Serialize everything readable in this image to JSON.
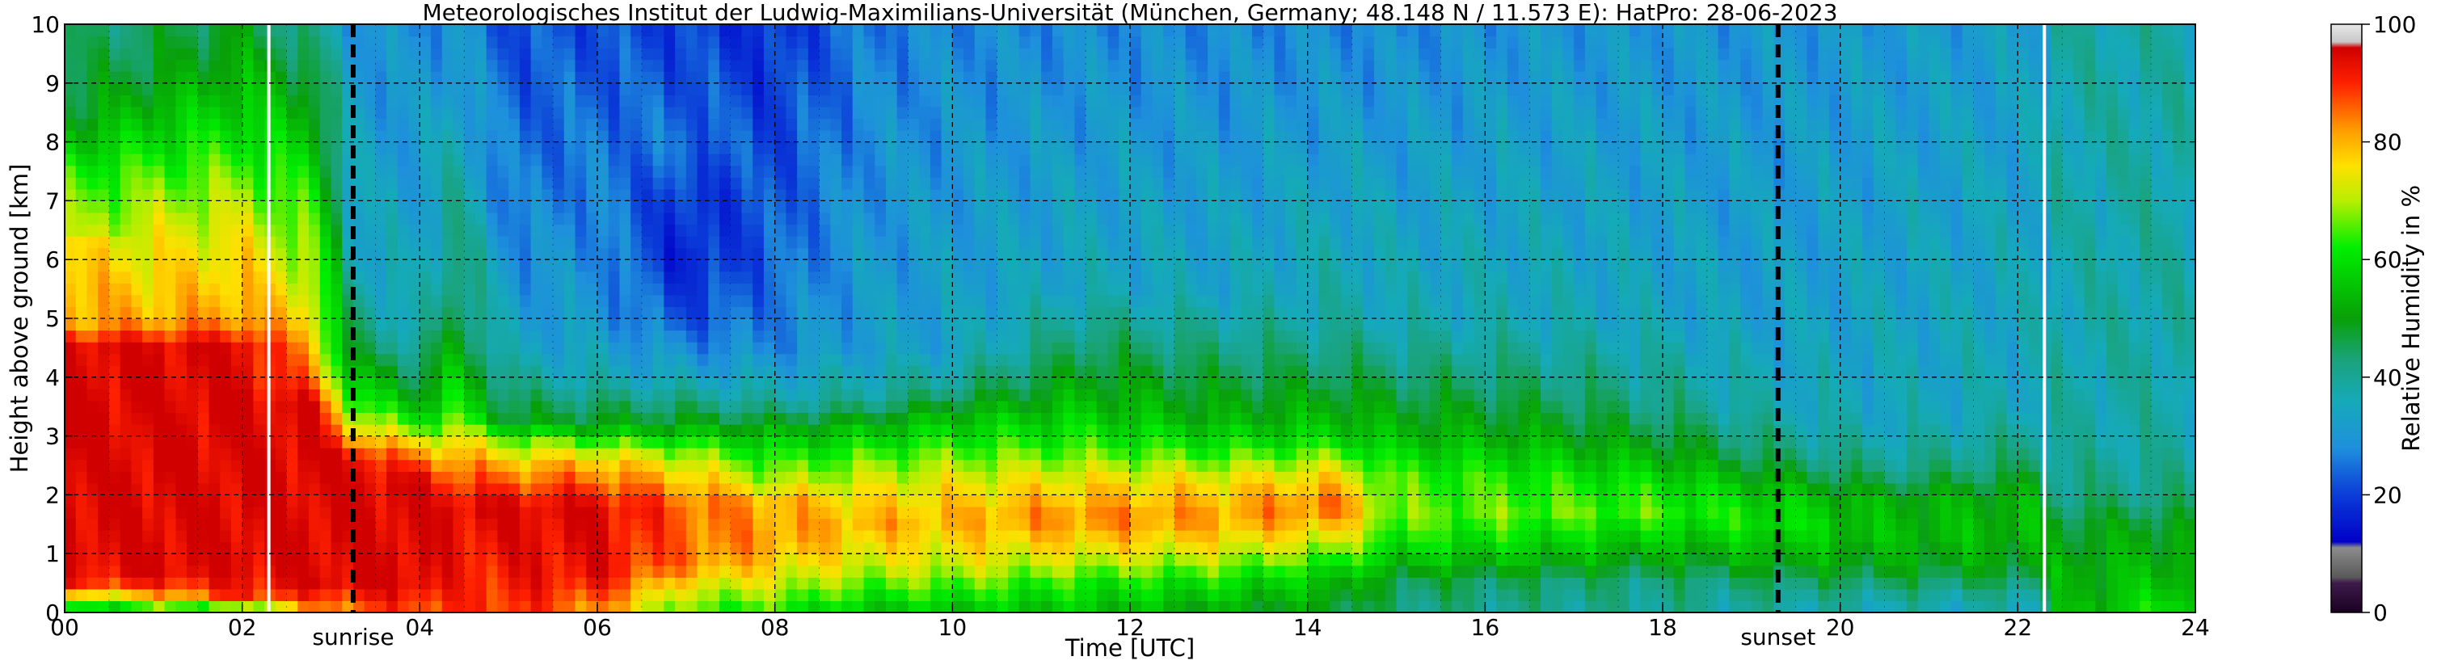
{
  "chart_data": {
    "type": "heatmap",
    "title": "Meteorologisches Institut der Ludwig-Maximilians-Universität (München, Germany; 48.148 N / 11.573 E):    HatPro: 28-06-2023",
    "xlabel": "Time [UTC]",
    "ylabel": "Height above ground [km]",
    "xlim": [
      0,
      24
    ],
    "ylim": [
      0,
      10
    ],
    "x_ticks": [
      0,
      2,
      4,
      6,
      8,
      10,
      12,
      14,
      16,
      18,
      20,
      22,
      24
    ],
    "x_tick_labels": [
      "00",
      "02",
      "04",
      "06",
      "08",
      "10",
      "12",
      "14",
      "16",
      "18",
      "20",
      "22",
      "24"
    ],
    "y_ticks": [
      0,
      1,
      2,
      3,
      4,
      5,
      6,
      7,
      8,
      9,
      10
    ],
    "y_tick_labels": [
      "0",
      "1",
      "2",
      "3",
      "4",
      "5",
      "6",
      "7",
      "8",
      "9",
      "10"
    ],
    "grid": true,
    "grid_style": "dashed",
    "events": [
      {
        "label": "sunrise",
        "x": 3.25
      },
      {
        "label": "sunset",
        "x": 19.3
      }
    ],
    "data_gaps": [
      2.3,
      22.3
    ],
    "colorbar": {
      "label": "Relative Humidity in %",
      "min": 0,
      "max": 100,
      "ticks": [
        0,
        20,
        40,
        60,
        80,
        100
      ],
      "tick_labels": [
        "0",
        "20",
        "40",
        "60",
        "80",
        "100"
      ],
      "stops": [
        {
          "value": 0,
          "color": "#1a0022"
        },
        {
          "value": 5,
          "color": "#3d1a4a"
        },
        {
          "value": 6,
          "color": "#5a5a5a"
        },
        {
          "value": 11,
          "color": "#8c8c8c"
        },
        {
          "value": 12,
          "color": "#0000c8"
        },
        {
          "value": 20,
          "color": "#0b3cd8"
        },
        {
          "value": 28,
          "color": "#1e90dc"
        },
        {
          "value": 36,
          "color": "#15aab8"
        },
        {
          "value": 43,
          "color": "#1aa37a"
        },
        {
          "value": 50,
          "color": "#08a008"
        },
        {
          "value": 62,
          "color": "#00ee00"
        },
        {
          "value": 70,
          "color": "#b8ee00"
        },
        {
          "value": 76,
          "color": "#ffe000"
        },
        {
          "value": 82,
          "color": "#ff9c00"
        },
        {
          "value": 90,
          "color": "#ff2000"
        },
        {
          "value": 96,
          "color": "#d00000"
        },
        {
          "value": 97,
          "color": "#c8c8c8"
        },
        {
          "value": 100,
          "color": "#e8e8e8"
        }
      ]
    },
    "profiles": [
      {
        "t": 0.0,
        "rh": [
          [
            0,
            55
          ],
          [
            0.2,
            60
          ],
          [
            0.4,
            88
          ],
          [
            1.0,
            95
          ],
          [
            4.6,
            95
          ],
          [
            4.8,
            82
          ],
          [
            5.5,
            80
          ],
          [
            6.3,
            75
          ],
          [
            6.5,
            68
          ],
          [
            7.5,
            62
          ],
          [
            8.5,
            48
          ],
          [
            10,
            42
          ]
        ]
      },
      {
        "t": 1.0,
        "rh": [
          [
            0,
            58
          ],
          [
            0.3,
            80
          ],
          [
            0.6,
            95
          ],
          [
            4.5,
            95
          ],
          [
            5.0,
            80
          ],
          [
            6.4,
            73
          ],
          [
            7.3,
            66
          ],
          [
            8.5,
            55
          ],
          [
            9.2,
            48
          ],
          [
            10,
            45
          ]
        ]
      },
      {
        "t": 2.0,
        "rh": [
          [
            0,
            55
          ],
          [
            0.3,
            90
          ],
          [
            0.8,
            95
          ],
          [
            4.5,
            95
          ],
          [
            5.0,
            82
          ],
          [
            6.4,
            74
          ],
          [
            7.5,
            66
          ],
          [
            8.5,
            58
          ],
          [
            10,
            48
          ]
        ]
      },
      {
        "t": 2.8,
        "rh": [
          [
            0,
            80
          ],
          [
            0.5,
            95
          ],
          [
            3.5,
            95
          ],
          [
            4.0,
            84
          ],
          [
            5.5,
            72
          ],
          [
            7.0,
            62
          ],
          [
            8.5,
            52
          ],
          [
            10,
            40
          ]
        ]
      },
      {
        "t": 3.25,
        "rh": [
          [
            0,
            85
          ],
          [
            0.5,
            95
          ],
          [
            2.6,
            95
          ],
          [
            3.0,
            80
          ],
          [
            3.5,
            65
          ],
          [
            4.5,
            45
          ],
          [
            6.0,
            35
          ],
          [
            10,
            30
          ]
        ]
      },
      {
        "t": 4.0,
        "rh": [
          [
            0,
            88
          ],
          [
            0.5,
            95
          ],
          [
            2.2,
            95
          ],
          [
            2.8,
            78
          ],
          [
            3.2,
            62
          ],
          [
            3.8,
            48
          ],
          [
            5.0,
            35
          ],
          [
            10,
            28
          ]
        ]
      },
      {
        "t": 4.4,
        "rh": [
          [
            0,
            88
          ],
          [
            1.8,
            95
          ],
          [
            2.6,
            82
          ],
          [
            3.5,
            62
          ],
          [
            5.0,
            48
          ],
          [
            7.0,
            40
          ],
          [
            10,
            30
          ]
        ]
      },
      {
        "t": 5.0,
        "rh": [
          [
            0,
            90
          ],
          [
            1.8,
            95
          ],
          [
            2.5,
            80
          ],
          [
            2.9,
            68
          ],
          [
            3.3,
            48
          ],
          [
            4.5,
            34
          ],
          [
            7.0,
            26
          ],
          [
            10,
            22
          ]
        ]
      },
      {
        "t": 6.0,
        "rh": [
          [
            0,
            82
          ],
          [
            0.6,
            93
          ],
          [
            1.8,
            95
          ],
          [
            2.5,
            80
          ],
          [
            2.8,
            70
          ],
          [
            3.2,
            50
          ],
          [
            4.0,
            36
          ],
          [
            5.0,
            30
          ],
          [
            6.5,
            28
          ],
          [
            10,
            22
          ]
        ]
      },
      {
        "t": 7.0,
        "rh": [
          [
            0,
            64
          ],
          [
            0.4,
            72
          ],
          [
            0.8,
            84
          ],
          [
            1.8,
            86
          ],
          [
            2.4,
            76
          ],
          [
            2.8,
            66
          ],
          [
            3.2,
            50
          ],
          [
            4.0,
            34
          ],
          [
            5.0,
            22
          ],
          [
            6.0,
            16
          ],
          [
            7.0,
            18
          ],
          [
            8.0,
            25
          ],
          [
            10,
            20
          ]
        ]
      },
      {
        "t": 8.0,
        "rh": [
          [
            0,
            62
          ],
          [
            0.5,
            72
          ],
          [
            1.2,
            82
          ],
          [
            1.9,
            80
          ],
          [
            2.2,
            70
          ],
          [
            3.0,
            55
          ],
          [
            3.6,
            38
          ],
          [
            4.5,
            28
          ],
          [
            6.0,
            24
          ],
          [
            10,
            18
          ]
        ]
      },
      {
        "t": 9.0,
        "rh": [
          [
            0,
            55
          ],
          [
            0.4,
            64
          ],
          [
            0.8,
            72
          ],
          [
            1.5,
            80
          ],
          [
            2.1,
            74
          ],
          [
            2.6,
            66
          ],
          [
            3.1,
            55
          ],
          [
            3.6,
            40
          ],
          [
            4.5,
            32
          ],
          [
            10,
            26
          ]
        ]
      },
      {
        "t": 10.0,
        "rh": [
          [
            0,
            55
          ],
          [
            0.4,
            64
          ],
          [
            0.8,
            72
          ],
          [
            1.6,
            80
          ],
          [
            2.2,
            74
          ],
          [
            2.7,
            66
          ],
          [
            3.3,
            55
          ],
          [
            3.8,
            42
          ],
          [
            4.5,
            33
          ],
          [
            10,
            28
          ]
        ]
      },
      {
        "t": 11.5,
        "rh": [
          [
            0,
            55
          ],
          [
            0.5,
            62
          ],
          [
            1.0,
            74
          ],
          [
            1.6,
            84
          ],
          [
            2.2,
            76
          ],
          [
            2.8,
            64
          ],
          [
            3.5,
            55
          ],
          [
            4.5,
            45
          ],
          [
            5.5,
            35
          ],
          [
            10,
            28
          ]
        ]
      },
      {
        "t": 13.0,
        "rh": [
          [
            0,
            50
          ],
          [
            0.5,
            60
          ],
          [
            1.0,
            72
          ],
          [
            1.6,
            82
          ],
          [
            2.2,
            76
          ],
          [
            2.7,
            64
          ],
          [
            3.3,
            52
          ],
          [
            4.5,
            42
          ],
          [
            5.5,
            34
          ],
          [
            10,
            28
          ]
        ]
      },
      {
        "t": 14.3,
        "rh": [
          [
            0,
            48
          ],
          [
            0.6,
            56
          ],
          [
            1.2,
            72
          ],
          [
            1.8,
            86
          ],
          [
            2.4,
            74
          ],
          [
            3.0,
            58
          ],
          [
            4.0,
            46
          ],
          [
            5.0,
            38
          ],
          [
            10,
            28
          ]
        ]
      },
      {
        "t": 15.0,
        "rh": [
          [
            0,
            42
          ],
          [
            0.5,
            46
          ],
          [
            1.0,
            58
          ],
          [
            1.6,
            66
          ],
          [
            2.3,
            64
          ],
          [
            3.0,
            54
          ],
          [
            4.0,
            44
          ],
          [
            5.0,
            36
          ],
          [
            10,
            28
          ]
        ]
      },
      {
        "t": 16.5,
        "rh": [
          [
            0,
            40
          ],
          [
            0.5,
            44
          ],
          [
            1.0,
            56
          ],
          [
            1.7,
            66
          ],
          [
            2.3,
            62
          ],
          [
            3.0,
            52
          ],
          [
            3.8,
            44
          ],
          [
            5.0,
            36
          ],
          [
            10,
            30
          ]
        ]
      },
      {
        "t": 18.0,
        "rh": [
          [
            0,
            40
          ],
          [
            0.5,
            42
          ],
          [
            1.0,
            52
          ],
          [
            1.7,
            64
          ],
          [
            2.2,
            60
          ],
          [
            2.8,
            50
          ],
          [
            3.5,
            42
          ],
          [
            5.0,
            34
          ],
          [
            10,
            30
          ]
        ]
      },
      {
        "t": 19.3,
        "rh": [
          [
            0,
            38
          ],
          [
            0.4,
            42
          ],
          [
            0.9,
            52
          ],
          [
            1.5,
            60
          ],
          [
            2.0,
            56
          ],
          [
            2.6,
            44
          ],
          [
            3.5,
            36
          ],
          [
            5.0,
            32
          ],
          [
            10,
            30
          ]
        ]
      },
      {
        "t": 20.5,
        "rh": [
          [
            0,
            36
          ],
          [
            0.3,
            40
          ],
          [
            0.8,
            50
          ],
          [
            1.3,
            54
          ],
          [
            1.9,
            52
          ],
          [
            2.4,
            42
          ],
          [
            3.2,
            35
          ],
          [
            10,
            31
          ]
        ]
      },
      {
        "t": 22.2,
        "rh": [
          [
            0,
            36
          ],
          [
            0.3,
            40
          ],
          [
            0.8,
            50
          ],
          [
            1.4,
            54
          ],
          [
            2.0,
            52
          ],
          [
            2.5,
            44
          ],
          [
            3.5,
            36
          ],
          [
            10,
            32
          ]
        ]
      },
      {
        "t": 22.4,
        "rh": [
          [
            0,
            52
          ],
          [
            0.2,
            50
          ],
          [
            0.7,
            52
          ],
          [
            1.5,
            48
          ],
          [
            2.0,
            42
          ],
          [
            3.0,
            38
          ],
          [
            6.0,
            36
          ],
          [
            10,
            38
          ]
        ]
      },
      {
        "t": 23.3,
        "rh": [
          [
            0,
            66
          ],
          [
            0.1,
            58
          ],
          [
            0.6,
            54
          ],
          [
            1.4,
            50
          ],
          [
            2.0,
            42
          ],
          [
            3.0,
            38
          ],
          [
            10,
            38
          ]
        ]
      },
      {
        "t": 24.0,
        "rh": [
          [
            0,
            72
          ],
          [
            0.1,
            60
          ],
          [
            0.6,
            54
          ],
          [
            1.4,
            50
          ],
          [
            2.0,
            42
          ],
          [
            3.0,
            38
          ],
          [
            10,
            38
          ]
        ]
      }
    ]
  }
}
